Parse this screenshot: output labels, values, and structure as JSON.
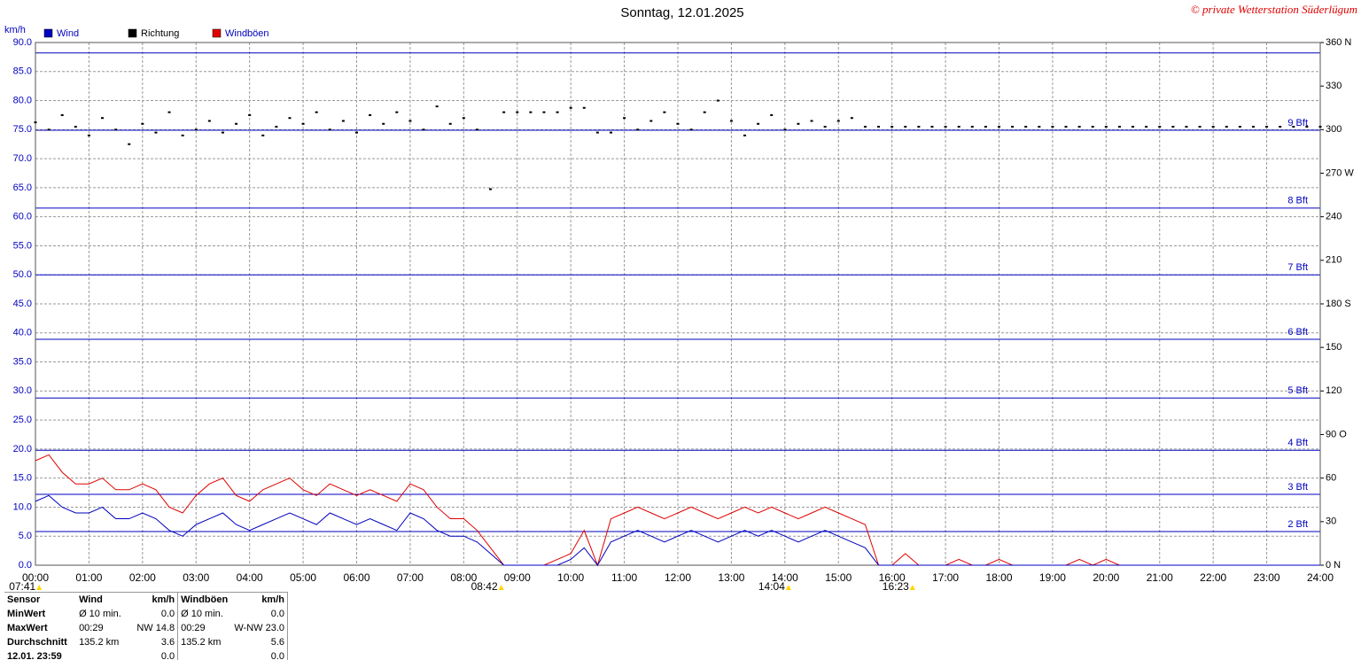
{
  "chart_data": {
    "type": "line",
    "title": "Sonntag, 12.01.2025",
    "copyright": "© private Wetterstation Süderlügum",
    "ylabel": "km/h",
    "xlim": [
      0,
      24
    ],
    "xticks": [
      {
        "value": 0,
        "label": "00:00"
      },
      {
        "value": 1,
        "label": "01:00"
      },
      {
        "value": 2,
        "label": "02:00"
      },
      {
        "value": 3,
        "label": "03:00"
      },
      {
        "value": 4,
        "label": "04:00"
      },
      {
        "value": 5,
        "label": "05:00"
      },
      {
        "value": 6,
        "label": "06:00"
      },
      {
        "value": 7,
        "label": "07:00"
      },
      {
        "value": 8,
        "label": "08:00"
      },
      {
        "value": 9,
        "label": "09:00"
      },
      {
        "value": 10,
        "label": "10:00"
      },
      {
        "value": 11,
        "label": "11:00"
      },
      {
        "value": 12,
        "label": "12:00"
      },
      {
        "value": 13,
        "label": "13:00"
      },
      {
        "value": 14,
        "label": "14:00"
      },
      {
        "value": 15,
        "label": "15:00"
      },
      {
        "value": 16,
        "label": "16:00"
      },
      {
        "value": 17,
        "label": "17:00"
      },
      {
        "value": 18,
        "label": "18:00"
      },
      {
        "value": 19,
        "label": "19:00"
      },
      {
        "value": 20,
        "label": "20:00"
      },
      {
        "value": 21,
        "label": "21:00"
      },
      {
        "value": 22,
        "label": "22:00"
      },
      {
        "value": 23,
        "label": "23:00"
      },
      {
        "value": 24,
        "label": "24:00"
      }
    ],
    "ylim": [
      0,
      90
    ],
    "yticks": [
      {
        "value": 0,
        "label": "0.0"
      },
      {
        "value": 5,
        "label": "5.0"
      },
      {
        "value": 10,
        "label": "10.0"
      },
      {
        "value": 15,
        "label": "15.0"
      },
      {
        "value": 20,
        "label": "20.0"
      },
      {
        "value": 25,
        "label": "25.0"
      },
      {
        "value": 30,
        "label": "30.0"
      },
      {
        "value": 35,
        "label": "35.0"
      },
      {
        "value": 40,
        "label": "40.0"
      },
      {
        "value": 45,
        "label": "45.0"
      },
      {
        "value": 50,
        "label": "50.0"
      },
      {
        "value": 55,
        "label": "55.0"
      },
      {
        "value": 60,
        "label": "60.0"
      },
      {
        "value": 65,
        "label": "65.0"
      },
      {
        "value": 70,
        "label": "70.0"
      },
      {
        "value": 75,
        "label": "75.0"
      },
      {
        "value": 80,
        "label": "80.0"
      },
      {
        "value": 85,
        "label": "85.0"
      },
      {
        "value": 90,
        "label": "90.0"
      }
    ],
    "y2lim": [
      0,
      360
    ],
    "y2ticks": [
      {
        "value": 0,
        "label": "0 N"
      },
      30,
      60,
      {
        "value": 90,
        "label": "90 O"
      },
      120,
      150,
      {
        "value": 180,
        "label": "180 S"
      },
      210,
      240,
      {
        "value": 270,
        "label": "270 W"
      },
      300,
      330,
      {
        "value": 360,
        "label": "360 N"
      }
    ],
    "grid": true,
    "bft_lines": [
      {
        "value": 5.8,
        "label": "2 Bft"
      },
      {
        "value": 12.2,
        "label": "3 Bft"
      },
      {
        "value": 19.8,
        "label": "4 Bft"
      },
      {
        "value": 28.8,
        "label": "5 Bft"
      },
      {
        "value": 38.9,
        "label": "6 Bft"
      },
      {
        "value": 50,
        "label": "7 Bft"
      },
      {
        "value": 61.5,
        "label": "8 Bft"
      },
      {
        "value": 74.9,
        "label": "9 Bft"
      },
      {
        "value": 88.2
      }
    ],
    "bft_color": "#0000c0",
    "time_markers": [
      {
        "x": 0.07,
        "label": "07:41"
      },
      {
        "x": 8.7,
        "label": "08:42"
      },
      {
        "x": 14.067,
        "label": "14:04"
      },
      {
        "x": 16.383,
        "label": "16:23"
      }
    ],
    "x": [
      0,
      0.25,
      0.5,
      0.75,
      1,
      1.25,
      1.5,
      1.75,
      2,
      2.25,
      2.5,
      2.75,
      3,
      3.25,
      3.5,
      3.75,
      4,
      4.25,
      4.5,
      4.75,
      5,
      5.25,
      5.5,
      5.75,
      6,
      6.25,
      6.5,
      6.75,
      7,
      7.25,
      7.5,
      7.75,
      8,
      8.25,
      8.5,
      8.75,
      9,
      9.25,
      9.5,
      9.75,
      10,
      10.25,
      10.5,
      10.75,
      11,
      11.25,
      11.5,
      11.75,
      12,
      12.25,
      12.5,
      12.75,
      13,
      13.25,
      13.5,
      13.75,
      14,
      14.25,
      14.5,
      14.75,
      15,
      15.25,
      15.5,
      15.75,
      16,
      16.25,
      16.5,
      16.75,
      17,
      17.25,
      17.5,
      17.75,
      18,
      18.25,
      18.5,
      18.75,
      19,
      19.25,
      19.5,
      19.75,
      20,
      20.25,
      20.5,
      20.75,
      21,
      21.25,
      21.5,
      21.75,
      22,
      22.25,
      22.5,
      22.75,
      23,
      23.25,
      23.5,
      23.75,
      24
    ],
    "series": [
      {
        "name": "Wind",
        "color": "#0000c0",
        "axis": "y",
        "style": "line",
        "values": [
          11,
          12,
          10,
          9,
          9,
          10,
          8,
          8,
          9,
          8,
          6,
          5,
          7,
          8,
          9,
          7,
          6,
          7,
          8,
          9,
          8,
          7,
          9,
          8,
          7,
          8,
          7,
          6,
          9,
          8,
          6,
          5,
          5,
          4,
          2,
          0,
          0,
          0,
          0,
          0,
          1,
          3,
          0,
          4,
          5,
          6,
          5,
          4,
          5,
          6,
          5,
          4,
          5,
          6,
          5,
          6,
          5,
          4,
          5,
          6,
          5,
          4,
          3,
          0,
          0,
          0,
          0,
          0,
          0,
          0,
          0,
          0,
          0,
          0,
          0,
          0,
          0,
          0,
          0,
          0,
          0,
          0,
          0,
          0,
          0,
          0,
          0,
          0,
          0,
          0,
          0,
          0,
          0,
          0,
          0,
          0,
          0
        ]
      },
      {
        "name": "Richtung",
        "color": "#000000",
        "axis": "y2",
        "style": "points",
        "values": [
          305,
          300,
          310,
          302,
          296,
          308,
          300,
          290,
          304,
          298,
          312,
          296,
          300,
          306,
          298,
          304,
          310,
          296,
          302,
          308,
          304,
          312,
          300,
          306,
          298,
          310,
          304,
          312,
          306,
          300,
          316,
          304,
          308,
          300,
          259,
          312,
          312,
          312,
          312,
          312,
          315,
          315,
          298,
          298,
          308,
          300,
          306,
          312,
          304,
          300,
          312,
          320,
          306,
          296,
          304,
          310,
          300,
          304,
          306,
          302,
          306,
          308,
          302,
          302,
          302,
          302,
          302,
          302,
          302,
          302,
          302,
          302,
          302,
          302,
          302,
          302,
          302,
          302,
          302,
          302,
          302,
          302,
          302,
          302,
          302,
          302,
          302,
          302,
          302,
          302,
          302,
          302,
          302,
          302,
          302,
          302,
          302
        ]
      },
      {
        "name": "Windböen",
        "color": "#e00000",
        "axis": "y",
        "style": "line",
        "values": [
          18,
          19,
          16,
          14,
          14,
          15,
          13,
          13,
          14,
          13,
          10,
          9,
          12,
          14,
          15,
          12,
          11,
          13,
          14,
          15,
          13,
          12,
          14,
          13,
          12,
          13,
          12,
          11,
          14,
          13,
          10,
          8,
          8,
          6,
          3,
          0,
          0,
          0,
          0,
          1,
          2,
          6,
          0,
          8,
          9,
          10,
          9,
          8,
          9,
          10,
          9,
          8,
          9,
          10,
          9,
          10,
          9,
          8,
          9,
          10,
          9,
          8,
          7,
          0,
          0,
          2,
          0,
          0,
          0,
          1,
          0,
          0,
          1,
          0,
          0,
          0,
          0,
          0,
          1,
          0,
          1,
          0,
          0,
          0,
          0,
          0,
          0,
          0,
          0,
          0,
          0,
          0,
          0,
          0,
          0,
          0,
          0
        ]
      }
    ]
  },
  "stats": {
    "header": [
      "Sensor",
      "Wind",
      "km/h",
      "Windböen",
      "km/h"
    ],
    "rows": [
      [
        "MinWert",
        "Ø 10 min.",
        "0.0",
        "Ø 10 min.",
        "0.0"
      ],
      [
        "MaxWert",
        "00:29",
        "NW 14.8",
        "00:29",
        "W-NW 23.0"
      ],
      [
        "Durchschnitt",
        "135.2 km",
        "3.6",
        "135.2 km",
        "5.6"
      ],
      [
        "12.01. 23:59",
        "",
        "0.0",
        "",
        "0.0"
      ]
    ]
  }
}
